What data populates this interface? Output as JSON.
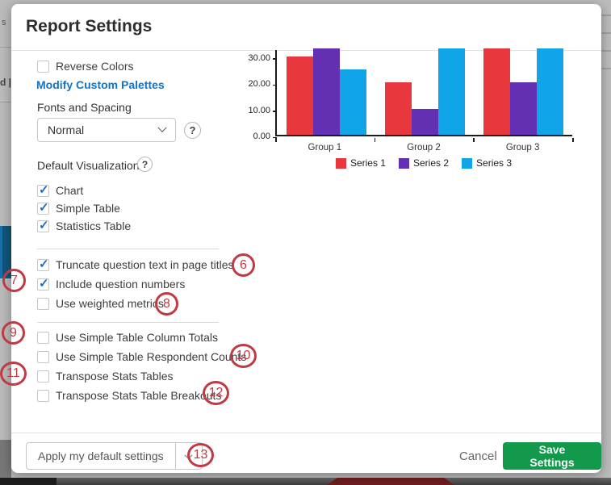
{
  "window": {
    "title": "Report Settings"
  },
  "background": {
    "fragment_top": "s",
    "fragment_mid": "d |"
  },
  "settings": {
    "reverse_colors": {
      "label": "Reverse Colors",
      "checked": false
    },
    "modify_palettes_link": "Modify Custom Palettes",
    "fonts_and_spacing": {
      "label": "Fonts and Spacing",
      "value": "Normal"
    },
    "help_icon": "?",
    "default_visualizations_label": "Default Visualizations",
    "visualization_options": [
      {
        "label": "Chart",
        "checked": true
      },
      {
        "label": "Simple Table",
        "checked": true
      },
      {
        "label": "Statistics Table",
        "checked": true
      }
    ],
    "page_options": [
      {
        "label": "Truncate question text in page titles",
        "checked": true
      },
      {
        "label": "Include question numbers",
        "checked": true
      },
      {
        "label": "Use weighted metrics",
        "checked": false
      }
    ],
    "table_options": [
      {
        "label": "Use Simple Table Column Totals",
        "checked": false
      },
      {
        "label": "Use Simple Table Respondent Counts",
        "checked": false
      },
      {
        "label": "Transpose Stats Tables",
        "checked": false
      },
      {
        "label": "Transpose Stats Table Breakouts",
        "checked": false
      }
    ]
  },
  "footer": {
    "apply_button": "Apply my default settings",
    "cancel_button": "Cancel",
    "save_button": "Save Settings"
  },
  "annotations": [
    "6",
    "7",
    "8",
    "9",
    "10",
    "11",
    "12",
    "13"
  ],
  "chart_data": {
    "type": "bar",
    "title": "",
    "categories": [
      "Group 1",
      "Group 2",
      "Group 3"
    ],
    "series": [
      {
        "name": "Series 1",
        "color": "#e8383d",
        "values": [
          30,
          20,
          33
        ]
      },
      {
        "name": "Series 2",
        "color": "#6330b4",
        "values": [
          33,
          10,
          20
        ]
      },
      {
        "name": "Series 3",
        "color": "#10a5e9",
        "values": [
          25,
          33,
          33
        ]
      }
    ],
    "ylim": [
      0,
      33
    ],
    "yticks": [
      {
        "value": 0,
        "label": "0.00"
      },
      {
        "value": 10,
        "label": "10.00"
      },
      {
        "value": 20,
        "label": "20.00"
      },
      {
        "value": 30,
        "label": "30.00"
      }
    ],
    "legend_position": "bottom",
    "grid": false
  },
  "colors": {
    "link_blue": "#0d74ce",
    "check_blue": "#1c6fc0",
    "save_green": "#12994c",
    "annotation_red": "#bf3a42"
  }
}
